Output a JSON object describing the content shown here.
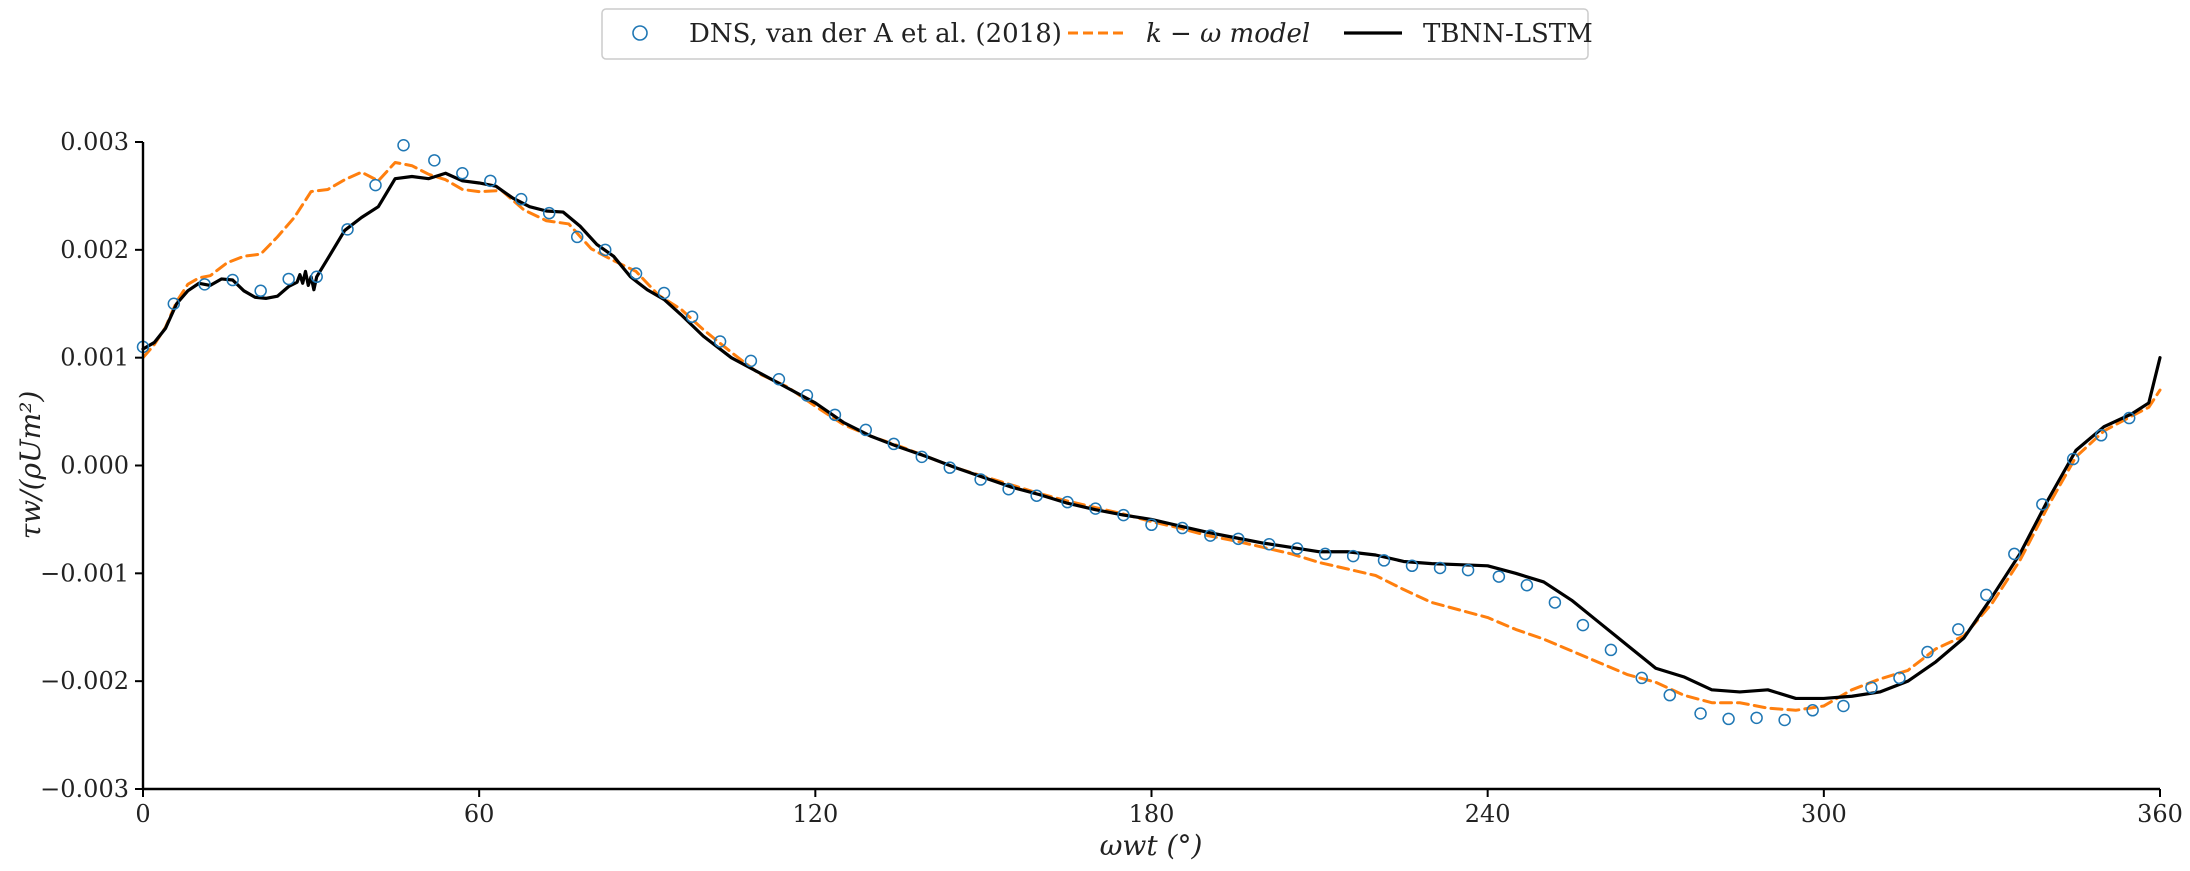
{
  "chart_data": {
    "type": "line",
    "xlabel": "ωwt (°)",
    "ylabel": "τw/(ρUm²)",
    "xlim": [
      0,
      360
    ],
    "ylim": [
      -0.003,
      0.003
    ],
    "xticks": [
      0,
      60,
      120,
      180,
      240,
      300,
      360
    ],
    "xtick_labels": [
      "0",
      "60",
      "120",
      "180",
      "240",
      "300",
      "360"
    ],
    "yticks": [
      -0.003,
      -0.002,
      -0.001,
      0.0,
      0.001,
      0.002,
      0.003
    ],
    "ytick_labels": [
      "−0.003",
      "−0.002",
      "−0.001",
      "0.000",
      "0.001",
      "0.002",
      "0.003"
    ],
    "grid": false,
    "legend_position": "top-center",
    "series": [
      {
        "name": "DNS, van der A et al. (2018)",
        "style": "markers",
        "color": "#1f77b4",
        "x": [
          0,
          5.5,
          11,
          16,
          21,
          26,
          31,
          36.5,
          41.5,
          46.5,
          52,
          57,
          62,
          67.5,
          72.5,
          77.5,
          82.5,
          88,
          93,
          98,
          103,
          108.5,
          113.5,
          118.5,
          123.5,
          129,
          134,
          139,
          144,
          149.5,
          154.5,
          159.5,
          165,
          170,
          175,
          180,
          185.5,
          190.5,
          195.5,
          201,
          206,
          211,
          216,
          221.5,
          226.5,
          231.5,
          236.5,
          242,
          247,
          252,
          257,
          262,
          267.5,
          272.5,
          278,
          283,
          288,
          293,
          298,
          303.5,
          308.5,
          313.5,
          318.5,
          324,
          329,
          334,
          339,
          344.5,
          349.5,
          354.5
        ],
        "y": [
          0.0011,
          0.0015,
          0.00168,
          0.00172,
          0.00162,
          0.00173,
          0.00175,
          0.00219,
          0.0026,
          0.00297,
          0.00283,
          0.00271,
          0.00264,
          0.00247,
          0.00234,
          0.00212,
          0.002,
          0.00178,
          0.0016,
          0.00138,
          0.00115,
          0.00097,
          0.0008,
          0.00065,
          0.00047,
          0.00033,
          0.0002,
          8e-05,
          -2e-05,
          -0.00013,
          -0.00022,
          -0.00028,
          -0.00034,
          -0.0004,
          -0.00046,
          -0.00055,
          -0.00058,
          -0.00065,
          -0.00068,
          -0.00073,
          -0.00077,
          -0.00082,
          -0.00084,
          -0.00088,
          -0.00093,
          -0.00095,
          -0.00097,
          -0.00103,
          -0.00111,
          -0.00127,
          -0.00148,
          -0.00171,
          -0.00197,
          -0.00213,
          -0.0023,
          -0.00235,
          -0.00234,
          -0.00236,
          -0.00227,
          -0.00223,
          -0.00206,
          -0.00197,
          -0.00173,
          -0.00152,
          -0.0012,
          -0.00082,
          -0.00036,
          6e-05,
          0.00028,
          0.00044
        ]
      },
      {
        "name": "k − ω model",
        "style": "dashed",
        "color": "#ff7f0e",
        "x": [
          0,
          2,
          4,
          6,
          8,
          10,
          12,
          15,
          18,
          21,
          24,
          27,
          30,
          33,
          36,
          39,
          42,
          45,
          48,
          51,
          54,
          57,
          60,
          64,
          68,
          72,
          76,
          80,
          84,
          88,
          92,
          96,
          100,
          105,
          110,
          115,
          120,
          125,
          130,
          135,
          140,
          145,
          150,
          155,
          160,
          165,
          170,
          175,
          180,
          185,
          190,
          195,
          200,
          205,
          210,
          215,
          220,
          225,
          230,
          235,
          240,
          245,
          250,
          255,
          260,
          265,
          270,
          275,
          280,
          285,
          290,
          295,
          300,
          305,
          310,
          315,
          320,
          325,
          330,
          335,
          340,
          345,
          350,
          355,
          358,
          360
        ],
        "y": [
          0.001,
          0.00112,
          0.00128,
          0.00152,
          0.00168,
          0.00174,
          0.00176,
          0.00188,
          0.00194,
          0.00196,
          0.00212,
          0.0023,
          0.00254,
          0.00256,
          0.00265,
          0.00272,
          0.00264,
          0.00281,
          0.00278,
          0.0027,
          0.00265,
          0.00256,
          0.00254,
          0.00255,
          0.00237,
          0.00227,
          0.00224,
          0.00201,
          0.0019,
          0.0018,
          0.00158,
          0.00145,
          0.00126,
          0.00105,
          0.00085,
          0.00073,
          0.00055,
          0.00038,
          0.00027,
          0.00018,
          8e-05,
          -2e-05,
          -0.0001,
          -0.00018,
          -0.00026,
          -0.00033,
          -0.00039,
          -0.00045,
          -0.00052,
          -0.00058,
          -0.00065,
          -0.0007,
          -0.00076,
          -0.00082,
          -0.0009,
          -0.00096,
          -0.00102,
          -0.00115,
          -0.00127,
          -0.00134,
          -0.00141,
          -0.00152,
          -0.00161,
          -0.00172,
          -0.00183,
          -0.00194,
          -0.00201,
          -0.00213,
          -0.0022,
          -0.0022,
          -0.00225,
          -0.00227,
          -0.00223,
          -0.00208,
          -0.00198,
          -0.0019,
          -0.0017,
          -0.00158,
          -0.00128,
          -0.00088,
          -0.00038,
          8e-05,
          0.00032,
          0.00046,
          0.00054,
          0.0007
        ]
      },
      {
        "name": "TBNN-LSTM",
        "style": "solid",
        "color": "#000000",
        "x": [
          0,
          2,
          4,
          6,
          8,
          10,
          12,
          14,
          16,
          18,
          20,
          22,
          24,
          26,
          27.5,
          28,
          28.5,
          29,
          29.5,
          30,
          30.5,
          31,
          33,
          36,
          39,
          42,
          45,
          48,
          51,
          54,
          57,
          60,
          63,
          66,
          69,
          72,
          75,
          78,
          81,
          84,
          87,
          90,
          93,
          96,
          100,
          105,
          110,
          115,
          120,
          125,
          130,
          135,
          140,
          145,
          150,
          155,
          160,
          165,
          170,
          175,
          180,
          185,
          190,
          195,
          200,
          205,
          210,
          215,
          220,
          225,
          230,
          235,
          240,
          245,
          250,
          255,
          260,
          265,
          270,
          275,
          280,
          285,
          290,
          295,
          300,
          305,
          310,
          315,
          320,
          325,
          330,
          335,
          340,
          345,
          350,
          355,
          358,
          360
        ],
        "y": [
          0.00108,
          0.00114,
          0.00127,
          0.0015,
          0.00162,
          0.00169,
          0.00167,
          0.00173,
          0.00172,
          0.00162,
          0.00156,
          0.00155,
          0.00157,
          0.00166,
          0.0017,
          0.00177,
          0.00169,
          0.0018,
          0.00167,
          0.00175,
          0.00163,
          0.00175,
          0.00192,
          0.00218,
          0.0023,
          0.0024,
          0.00266,
          0.00268,
          0.00266,
          0.00271,
          0.00264,
          0.00262,
          0.00259,
          0.00248,
          0.0024,
          0.00236,
          0.00235,
          0.00222,
          0.00205,
          0.00194,
          0.00175,
          0.00163,
          0.00154,
          0.0014,
          0.0012,
          0.001,
          0.00086,
          0.00072,
          0.00058,
          0.0004,
          0.00027,
          0.00017,
          8e-05,
          -2e-05,
          -0.00011,
          -0.0002,
          -0.00027,
          -0.00035,
          -0.00041,
          -0.00046,
          -0.0005,
          -0.00056,
          -0.00062,
          -0.00067,
          -0.00072,
          -0.00076,
          -0.0008,
          -0.0008,
          -0.00083,
          -0.00089,
          -0.00091,
          -0.00092,
          -0.00093,
          -0.001,
          -0.00108,
          -0.00125,
          -0.00146,
          -0.00167,
          -0.00188,
          -0.00196,
          -0.00208,
          -0.0021,
          -0.00208,
          -0.00216,
          -0.00216,
          -0.00214,
          -0.0021,
          -0.002,
          -0.00182,
          -0.0016,
          -0.00122,
          -0.00082,
          -0.00032,
          0.00014,
          0.00036,
          0.00048,
          0.00058,
          0.001
        ]
      }
    ]
  }
}
